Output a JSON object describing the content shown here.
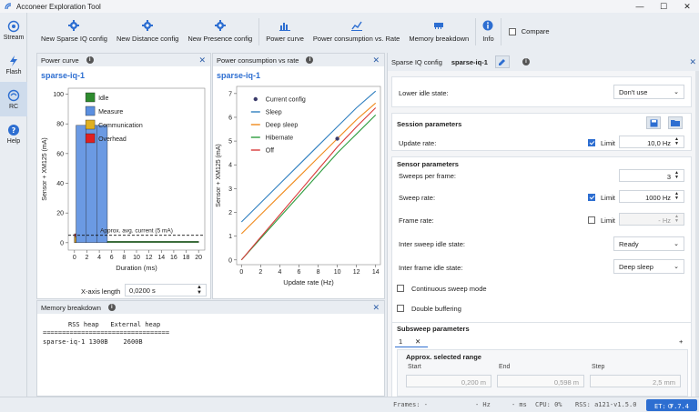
{
  "window": {
    "title": "Acconeer Exploration Tool",
    "min": "—",
    "max": "☐",
    "close": "✕"
  },
  "sidebar": {
    "items": [
      {
        "label": "Stream",
        "icon": "stream-icon"
      },
      {
        "label": "Flash",
        "icon": "flash-icon"
      },
      {
        "label": "RC",
        "icon": "rc-icon"
      },
      {
        "label": "Help",
        "icon": "help-icon"
      }
    ]
  },
  "toolbar": {
    "buttons": [
      {
        "label": "New Sparse IQ config",
        "icon": "gear-icon"
      },
      {
        "label": "New Distance config",
        "icon": "gear-icon"
      },
      {
        "label": "New Presence config",
        "icon": "gear-icon"
      },
      {
        "label": "Power curve",
        "icon": "bar-chart-icon"
      },
      {
        "label": "Power consumption vs. Rate",
        "icon": "line-chart-icon"
      },
      {
        "label": "Memory breakdown",
        "icon": "memory-icon"
      },
      {
        "label": "Info",
        "icon": "info-icon"
      }
    ],
    "compare_label": "Compare"
  },
  "power_curve": {
    "header": "Power curve",
    "plot_title": "sparse-iq-1",
    "x_length_label": "X-axis length",
    "x_length_value": "0,0200 s",
    "chart_data": {
      "type": "bar",
      "xlabel": "Duration (ms)",
      "ylabel": "Sensor + XM125 (mA)",
      "xlim": [
        -1,
        21
      ],
      "ylim": [
        -5,
        104
      ],
      "xticks": [
        0,
        2,
        4,
        6,
        8,
        10,
        12,
        14,
        16,
        18,
        20
      ],
      "yticks": [
        0,
        20,
        40,
        60,
        80,
        100
      ],
      "legend": [
        "Idle",
        "Measure",
        "Communication",
        "Overhead"
      ],
      "colors": {
        "Idle": "#2e8b2e",
        "Measure": "#5b8fe0",
        "Communication": "#e0b020",
        "Overhead": "#e02020"
      },
      "segments": [
        {
          "state": "Overhead",
          "x0": 0.0,
          "x1": 0.25,
          "y": 6
        },
        {
          "state": "Measure",
          "x0": 0.25,
          "x1": 5.3,
          "y": 79
        },
        {
          "state": "Communication",
          "x0": 0.0,
          "x1": 0.25,
          "y": 4
        },
        {
          "state": "Idle",
          "x0": 5.3,
          "x1": 20,
          "y": 1
        }
      ],
      "avg_line": {
        "value": 5,
        "label": "Approx. avg. current (5 mA)"
      }
    }
  },
  "power_rate": {
    "header": "Power consumption vs rate",
    "plot_title": "sparse-iq-1",
    "chart_data": {
      "type": "line",
      "xlabel": "Update rate (Hz)",
      "ylabel": "Sensor + XM125 (mA)",
      "xlim": [
        -0.5,
        14.5
      ],
      "ylim": [
        -0.2,
        7.3
      ],
      "xticks": [
        0,
        2,
        4,
        6,
        8,
        10,
        12,
        14
      ],
      "yticks": [
        0,
        1,
        2,
        3,
        4,
        5,
        6,
        7
      ],
      "legend": [
        "Current config",
        "Sleep",
        "Deep sleep",
        "Hibernate",
        "Off"
      ],
      "current_config": {
        "x": 10,
        "y": 5.1
      },
      "series": [
        {
          "name": "Sleep",
          "color": "#2f7fbf",
          "x": [
            0,
            2,
            4,
            6,
            8,
            10,
            12,
            14
          ],
          "y": [
            1.6,
            2.4,
            3.2,
            4.0,
            4.8,
            5.6,
            6.4,
            7.1
          ]
        },
        {
          "name": "Deep sleep",
          "color": "#f08a1c",
          "x": [
            0,
            2,
            4,
            6,
            8,
            10,
            12,
            14
          ],
          "y": [
            1.1,
            1.9,
            2.7,
            3.5,
            4.3,
            5.1,
            5.9,
            6.6
          ]
        },
        {
          "name": "Hibernate",
          "color": "#2e9c3e",
          "x": [
            0,
            2,
            4,
            6,
            8,
            10,
            12,
            14
          ],
          "y": [
            0.0,
            0.9,
            1.8,
            2.7,
            3.6,
            4.5,
            5.3,
            6.1
          ]
        },
        {
          "name": "Off",
          "color": "#d93a3a",
          "x": [
            0,
            2,
            4,
            6,
            8,
            10,
            12,
            14
          ],
          "y": [
            0.0,
            0.95,
            1.9,
            2.85,
            3.8,
            4.75,
            5.6,
            6.4
          ]
        }
      ]
    }
  },
  "memory": {
    "header": "Memory breakdown",
    "col1": "RSS heap",
    "col2": "External heap",
    "rule": "=================================",
    "row_name": "sparse-iq-1",
    "row_rss": "1300B",
    "row_ext": "2600B"
  },
  "settings": {
    "header": "Sparse IQ config",
    "config_name": "sparse-iq-1",
    "lower_idle_label": "Lower idle state:",
    "lower_idle_value": "Don't use",
    "session_title": "Session parameters",
    "update_rate_label": "Update rate:",
    "limit_label": "Limit",
    "update_rate_value": "10,0 Hz",
    "sensor_title": "Sensor parameters",
    "sweeps_label": "Sweeps per frame:",
    "sweeps_value": "3",
    "sweep_rate_label": "Sweep rate:",
    "sweep_rate_value": "1000 Hz",
    "frame_rate_label": "Frame rate:",
    "frame_rate_value": "- Hz",
    "inter_sweep_label": "Inter sweep idle state:",
    "inter_sweep_value": "Ready",
    "inter_frame_label": "Inter frame idle state:",
    "inter_frame_value": "Deep sleep",
    "continuous_label": "Continuous sweep mode",
    "double_label": "Double buffering",
    "subsweep_title": "Subsweep parameters",
    "tab_label": "1",
    "tab_close": "✕",
    "add_tab": "+",
    "range_title": "Approx. selected range",
    "start_label": "Start",
    "end_label": "End",
    "step_label": "Step",
    "start_value": "0,200 m",
    "end_value": "0,598 m",
    "step_value": "2,5 mm"
  },
  "status": {
    "frames": "Frames:   -",
    "hz": "- Hz",
    "ms": "- ms",
    "cpu": "CPU:   0%",
    "rss": "RSS: a121-v1.5.0",
    "et": "ET: 7.7.4"
  }
}
